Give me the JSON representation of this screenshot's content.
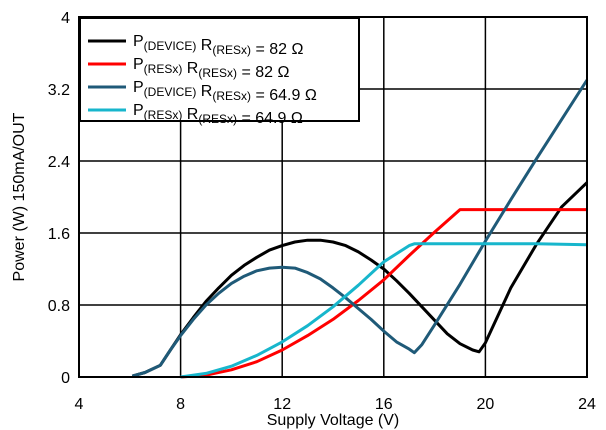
{
  "chart_data": {
    "type": "line",
    "xlabel": "Supply Voltage (V)",
    "ylabel": "Power (W) 150mA/OUT",
    "xlim": [
      4,
      24
    ],
    "ylim": [
      0,
      4
    ],
    "x_ticks": [
      4,
      8,
      12,
      16,
      20,
      24
    ],
    "y_ticks": [
      0,
      0.8,
      1.6,
      2.4,
      3.2,
      4
    ],
    "x_tick_labels": [
      "4",
      "8",
      "12",
      "16",
      "20",
      "24"
    ],
    "y_tick_labels": [
      "0",
      "0.8",
      "1.6",
      "2.4",
      "3.2",
      "4"
    ],
    "grid": true,
    "legend_position": "top-left",
    "series": [
      {
        "name": "P(DEVICE) R(RESx) = 82 Ω",
        "label_parts": [
          {
            "text": "P",
            "sub": false
          },
          {
            "text": "(DEVICE)",
            "sub": true
          },
          {
            "text": " R",
            "sub": false
          },
          {
            "text": "(RESx)",
            "sub": true
          },
          {
            "text": " = 82 Ω",
            "sub": false
          }
        ],
        "color": "#000000",
        "x": [
          6.1,
          6.6,
          7.2,
          7.6,
          8.0,
          8.5,
          9.0,
          9.5,
          10.0,
          10.5,
          11.0,
          11.5,
          12.0,
          12.5,
          13.0,
          13.5,
          14.0,
          14.5,
          15.0,
          15.5,
          16.0,
          16.5,
          17.0,
          17.5,
          18.0,
          18.5,
          19.0,
          19.5,
          19.75,
          20.0,
          21.0,
          22.0,
          23.0,
          24.0
        ],
        "y": [
          0.01,
          0.05,
          0.13,
          0.3,
          0.47,
          0.66,
          0.84,
          0.99,
          1.13,
          1.24,
          1.33,
          1.41,
          1.46,
          1.5,
          1.52,
          1.52,
          1.5,
          1.46,
          1.39,
          1.3,
          1.2,
          1.07,
          0.93,
          0.78,
          0.63,
          0.48,
          0.37,
          0.3,
          0.28,
          0.38,
          0.99,
          1.47,
          1.89,
          2.16
        ]
      },
      {
        "name": "P(RESx) R(RESx) = 82 Ω",
        "label_parts": [
          {
            "text": "P",
            "sub": false
          },
          {
            "text": "(RESx)",
            "sub": true
          },
          {
            "text": " R",
            "sub": false
          },
          {
            "text": "(RESx)",
            "sub": true
          },
          {
            "text": " = 82 Ω",
            "sub": false
          }
        ],
        "color": "#ff0000",
        "x": [
          8.0,
          9.0,
          10.0,
          11.0,
          12.0,
          13.0,
          14.0,
          15.0,
          16.0,
          17.0,
          18.0,
          19.0,
          19.75,
          20.5,
          22.0,
          24.0
        ],
        "y": [
          0.0,
          0.02,
          0.08,
          0.17,
          0.3,
          0.46,
          0.64,
          0.85,
          1.08,
          1.35,
          1.61,
          1.86,
          1.86,
          1.86,
          1.86,
          1.86
        ]
      },
      {
        "name": "P(DEVICE) R(RESx) = 64.9 Ω",
        "label_parts": [
          {
            "text": "P",
            "sub": false
          },
          {
            "text": "(DEVICE)",
            "sub": true
          },
          {
            "text": " R",
            "sub": false
          },
          {
            "text": "(RESx)",
            "sub": true
          },
          {
            "text": " = 64.9 Ω",
            "sub": false
          }
        ],
        "color": "#1f5a78",
        "x": [
          6.1,
          6.6,
          7.2,
          7.6,
          8.0,
          8.5,
          9.0,
          9.5,
          10.0,
          10.5,
          11.0,
          11.5,
          12.0,
          12.5,
          13.0,
          13.5,
          14.0,
          14.5,
          15.0,
          15.5,
          16.0,
          16.5,
          17.0,
          17.2,
          17.5,
          18.0,
          19.0,
          20.0,
          21.0,
          22.0,
          23.0,
          24.0
        ],
        "y": [
          0.01,
          0.05,
          0.13,
          0.3,
          0.46,
          0.64,
          0.8,
          0.93,
          1.04,
          1.12,
          1.18,
          1.21,
          1.22,
          1.21,
          1.16,
          1.09,
          0.99,
          0.88,
          0.76,
          0.64,
          0.51,
          0.39,
          0.31,
          0.27,
          0.36,
          0.58,
          1.03,
          1.51,
          1.97,
          2.42,
          2.86,
          3.3
        ]
      },
      {
        "name": "P(RESx) R(RESx) = 64.9 Ω",
        "label_parts": [
          {
            "text": "P",
            "sub": false
          },
          {
            "text": "(RESx)",
            "sub": true
          },
          {
            "text": " R",
            "sub": false
          },
          {
            "text": "(RESx)",
            "sub": true
          },
          {
            "text": " = 64.9 Ω",
            "sub": false
          }
        ],
        "color": "#17b6cc",
        "x": [
          8.0,
          9.0,
          10.0,
          11.0,
          12.0,
          13.0,
          14.0,
          15.0,
          16.0,
          17.0,
          17.2,
          18.0,
          20.0,
          22.0,
          24.0
        ],
        "y": [
          0.0,
          0.04,
          0.12,
          0.24,
          0.39,
          0.57,
          0.78,
          1.02,
          1.28,
          1.46,
          1.48,
          1.48,
          1.48,
          1.48,
          1.47
        ]
      }
    ]
  }
}
